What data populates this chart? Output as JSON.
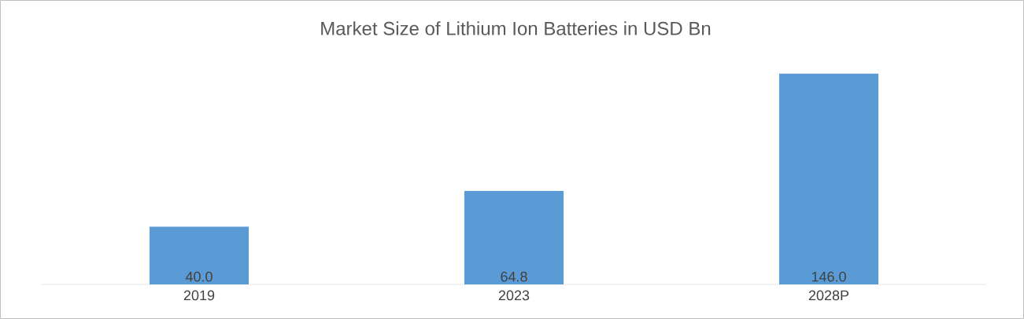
{
  "chart_data": {
    "type": "bar",
    "title": "Market Size of Lithium Ion Batteries in USD Bn",
    "categories": [
      "2019",
      "2023",
      "2028P"
    ],
    "values": [
      40.0,
      64.8,
      146.0
    ],
    "value_labels": [
      "40.0",
      "64.8",
      "146.0"
    ],
    "color": "#5b9bd5"
  }
}
